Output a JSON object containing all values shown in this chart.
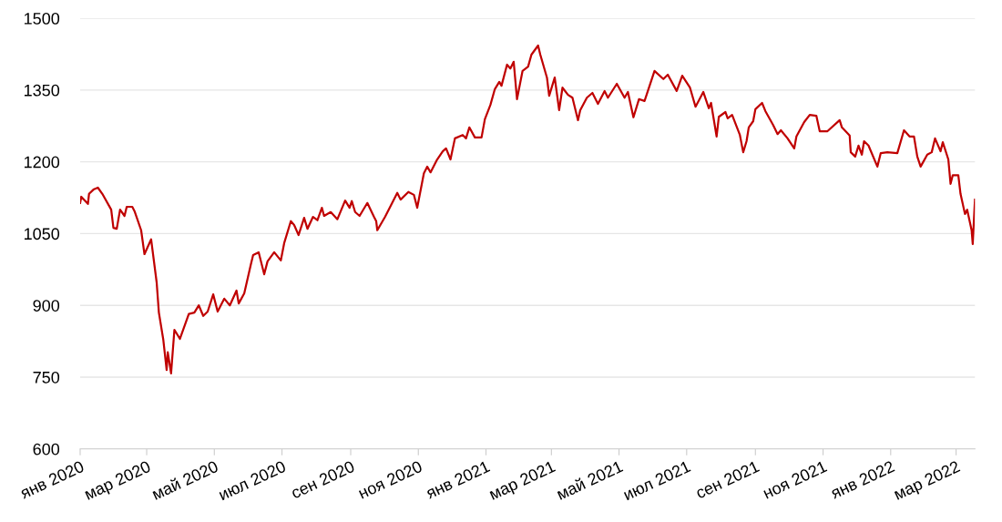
{
  "chart_data": {
    "type": "line",
    "color": "#c00000",
    "grid": "y",
    "legend": false,
    "marker": "none",
    "line_style": "solid",
    "xlim": [
      "2020-01-01",
      "2022-03-18"
    ],
    "ylim": [
      600,
      1500
    ],
    "yticks": [
      600,
      750,
      900,
      1050,
      1200,
      1350,
      1500
    ],
    "xticks": [
      {
        "value": "2020-01-01",
        "label": "янв 2020"
      },
      {
        "value": "2020-03-01",
        "label": "мар 2020"
      },
      {
        "value": "2020-05-01",
        "label": "май 2020"
      },
      {
        "value": "2020-07-01",
        "label": "июл 2020"
      },
      {
        "value": "2020-09-01",
        "label": "сен 2020"
      },
      {
        "value": "2020-11-01",
        "label": "ноя 2020"
      },
      {
        "value": "2021-01-01",
        "label": "янв 2021"
      },
      {
        "value": "2021-03-01",
        "label": "мар 2021"
      },
      {
        "value": "2021-05-01",
        "label": "май 2021"
      },
      {
        "value": "2021-07-01",
        "label": "июл 2021"
      },
      {
        "value": "2021-09-01",
        "label": "сен 2021"
      },
      {
        "value": "2021-11-01",
        "label": "ноя 2021"
      },
      {
        "value": "2022-01-01",
        "label": "янв 2022"
      },
      {
        "value": "2022-03-01",
        "label": "мар 2022"
      }
    ],
    "x": [
      "2020-01-01",
      "2020-01-02",
      "2020-01-08",
      "2020-01-09",
      "2020-01-13",
      "2020-01-17",
      "2020-01-21",
      "2020-01-29",
      "2020-01-31",
      "2020-02-03",
      "2020-02-06",
      "2020-02-10",
      "2020-02-12",
      "2020-02-17",
      "2020-02-19",
      "2020-02-25",
      "2020-02-28",
      "2020-03-05",
      "2020-03-10",
      "2020-03-12",
      "2020-03-16",
      "2020-03-19",
      "2020-03-20",
      "2020-03-23",
      "2020-03-26",
      "2020-03-31",
      "2020-04-08",
      "2020-04-13",
      "2020-04-17",
      "2020-04-21",
      "2020-04-25",
      "2020-04-30",
      "2020-05-04",
      "2020-05-10",
      "2020-05-15",
      "2020-05-21",
      "2020-05-23",
      "2020-05-28",
      "2020-06-03",
      "2020-06-05",
      "2020-06-10",
      "2020-06-15",
      "2020-06-18",
      "2020-06-24",
      "2020-06-30",
      "2020-07-03",
      "2020-07-09",
      "2020-07-12",
      "2020-07-16",
      "2020-07-21",
      "2020-07-24",
      "2020-07-29",
      "2020-08-02",
      "2020-08-06",
      "2020-08-08",
      "2020-08-14",
      "2020-08-20",
      "2020-08-27",
      "2020-08-31",
      "2020-09-02",
      "2020-09-05",
      "2020-09-09",
      "2020-09-16",
      "2020-09-22",
      "2020-09-24",
      "2020-09-25",
      "2020-10-02",
      "2020-10-13",
      "2020-10-16",
      "2020-10-23",
      "2020-10-28",
      "2020-10-31",
      "2020-11-06",
      "2020-11-09",
      "2020-11-12",
      "2020-11-18",
      "2020-11-23",
      "2020-11-26",
      "2020-11-30",
      "2020-12-04",
      "2020-12-11",
      "2020-12-14",
      "2020-12-17",
      "2020-12-22",
      "2020-12-28",
      "2020-12-31",
      "2021-01-05",
      "2021-01-09",
      "2021-01-13",
      "2021-01-15",
      "2021-01-20",
      "2021-01-23",
      "2021-01-26",
      "2021-01-29",
      "2021-02-03",
      "2021-02-08",
      "2021-02-11",
      "2021-02-17",
      "2021-02-19",
      "2021-02-25",
      "2021-02-27",
      "2021-03-04",
      "2021-03-08",
      "2021-03-11",
      "2021-03-16",
      "2021-03-20",
      "2021-03-25",
      "2021-03-27",
      "2021-04-02",
      "2021-04-07",
      "2021-04-12",
      "2021-04-18",
      "2021-04-21",
      "2021-04-29",
      "2021-05-06",
      "2021-05-09",
      "2021-05-14",
      "2021-05-19",
      "2021-05-24",
      "2021-06-02",
      "2021-06-10",
      "2021-06-14",
      "2021-06-22",
      "2021-06-27",
      "2021-07-04",
      "2021-07-09",
      "2021-07-16",
      "2021-07-21",
      "2021-07-23",
      "2021-07-28",
      "2021-07-30",
      "2021-08-05",
      "2021-08-07",
      "2021-08-11",
      "2021-08-18",
      "2021-08-21",
      "2021-08-24",
      "2021-08-26",
      "2021-08-30",
      "2021-09-01",
      "2021-09-07",
      "2021-09-10",
      "2021-09-17",
      "2021-09-21",
      "2021-09-24",
      "2021-09-30",
      "2021-10-06",
      "2021-10-08",
      "2021-10-15",
      "2021-10-20",
      "2021-10-26",
      "2021-10-29",
      "2021-11-05",
      "2021-11-16",
      "2021-11-18",
      "2021-11-25",
      "2021-11-26",
      "2021-11-30",
      "2021-12-03",
      "2021-12-06",
      "2021-12-08",
      "2021-12-12",
      "2021-12-20",
      "2021-12-23",
      "2021-12-29",
      "2022-01-07",
      "2022-01-13",
      "2022-01-18",
      "2022-01-22",
      "2022-01-25",
      "2022-01-28",
      "2022-02-03",
      "2022-02-07",
      "2022-02-10",
      "2022-02-15",
      "2022-02-17",
      "2022-02-22",
      "2022-02-24",
      "2022-02-26",
      "2022-03-03",
      "2022-03-05",
      "2022-03-09",
      "2022-03-11",
      "2022-03-15",
      "2022-03-16",
      "2022-03-18"
    ],
    "values": [
      1114,
      1127,
      1112,
      1133,
      1142,
      1146,
      1133,
      1100,
      1062,
      1060,
      1100,
      1087,
      1106,
      1106,
      1097,
      1057,
      1007,
      1038,
      948,
      885,
      828,
      765,
      802,
      758,
      849,
      830,
      882,
      885,
      900,
      878,
      887,
      923,
      887,
      914,
      900,
      931,
      904,
      925,
      986,
      1005,
      1011,
      965,
      992,
      1011,
      994,
      1030,
      1076,
      1068,
      1047,
      1083,
      1060,
      1085,
      1078,
      1104,
      1087,
      1095,
      1080,
      1119,
      1104,
      1118,
      1095,
      1087,
      1114,
      1085,
      1076,
      1057,
      1085,
      1135,
      1121,
      1137,
      1131,
      1104,
      1176,
      1190,
      1178,
      1205,
      1222,
      1228,
      1205,
      1249,
      1256,
      1249,
      1272,
      1251,
      1251,
      1289,
      1319,
      1352,
      1367,
      1359,
      1403,
      1395,
      1409,
      1331,
      1390,
      1399,
      1424,
      1443,
      1424,
      1376,
      1338,
      1376,
      1308,
      1355,
      1340,
      1334,
      1287,
      1308,
      1334,
      1344,
      1321,
      1348,
      1334,
      1363,
      1334,
      1346,
      1293,
      1331,
      1327,
      1390,
      1373,
      1382,
      1348,
      1380,
      1355,
      1315,
      1346,
      1312,
      1323,
      1253,
      1294,
      1304,
      1291,
      1298,
      1256,
      1220,
      1243,
      1272,
      1285,
      1310,
      1323,
      1306,
      1277,
      1258,
      1266,
      1249,
      1228,
      1253,
      1283,
      1298,
      1296,
      1264,
      1264,
      1287,
      1272,
      1255,
      1220,
      1211,
      1234,
      1215,
      1243,
      1234,
      1190,
      1218,
      1220,
      1218,
      1266,
      1253,
      1253,
      1211,
      1190,
      1215,
      1220,
      1249,
      1222,
      1241,
      1205,
      1154,
      1172,
      1172,
      1133,
      1091,
      1100,
      1057,
      1028,
      1121
    ]
  }
}
